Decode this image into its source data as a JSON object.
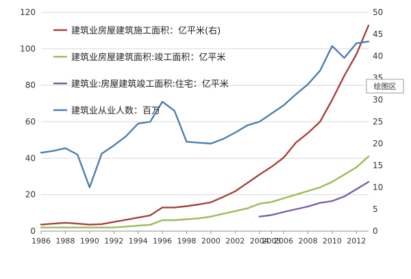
{
  "chart_data": {
    "type": "line",
    "title": "",
    "xlabel": "",
    "ylabel": "",
    "plot_area_tag": "绘图区",
    "grid": "horizontal",
    "legend_position": "top-left inside",
    "xlim": [
      1986,
      2013
    ],
    "x_ticks": [
      1986,
      1988,
      1990,
      1992,
      1994,
      1996,
      1998,
      2000,
      2002,
      2004,
      2005,
      2006,
      2008,
      2010,
      2012
    ],
    "y_left": {
      "ylim": [
        0,
        120
      ],
      "ticks": [
        0,
        20,
        40,
        60,
        80,
        100,
        120
      ]
    },
    "y_right": {
      "ylim": [
        0,
        50
      ],
      "ticks": [
        0,
        5,
        10,
        15,
        20,
        25,
        30,
        35,
        40,
        45,
        50
      ]
    },
    "series": [
      {
        "name": "建筑业房屋建筑施工面积：亿平米(右)",
        "axis": "right",
        "color": "#a8403c",
        "x": [
          1986,
          1987,
          1988,
          1989,
          1990,
          1991,
          1992,
          1993,
          1994,
          1995,
          1996,
          1997,
          1998,
          1999,
          2000,
          2001,
          2002,
          2003,
          2004,
          2005,
          2006,
          2007,
          2008,
          2009,
          2010,
          2011,
          2012,
          2013
        ],
        "values": [
          1.5,
          1.7,
          1.9,
          1.7,
          1.5,
          1.6,
          2.1,
          2.6,
          3.1,
          3.6,
          5.4,
          5.4,
          5.7,
          6.1,
          6.6,
          7.8,
          9.1,
          11.0,
          12.9,
          14.7,
          16.8,
          20.2,
          22.4,
          25.0,
          30.0,
          35.5,
          40.4,
          47.0
        ]
      },
      {
        "name": "建筑业房屋建筑面积:竣工面积：亿平米",
        "axis": "left",
        "color": "#9bbb59",
        "x": [
          1986,
          1987,
          1988,
          1989,
          1990,
          1991,
          1992,
          1993,
          1994,
          1995,
          1996,
          1997,
          1998,
          1999,
          2000,
          2001,
          2002,
          2003,
          2004,
          2005,
          2006,
          2007,
          2008,
          2009,
          2010,
          2011,
          2012,
          2013
        ],
        "values": [
          2,
          2,
          2,
          2,
          2,
          2,
          2,
          2.5,
          3,
          3.5,
          6,
          6,
          6.5,
          7,
          8,
          9.5,
          11,
          12.5,
          15,
          16,
          18,
          20,
          22,
          24,
          27,
          31,
          35,
          41
        ]
      },
      {
        "name": "建筑业:房屋建筑竣工面积:住宅：亿平米",
        "axis": "left",
        "color": "#7b5ea7",
        "x": [
          2004,
          2005,
          2006,
          2007,
          2008,
          2009,
          2010,
          2011,
          2012,
          2013
        ],
        "values": [
          8,
          8.8,
          10.5,
          12,
          13.5,
          15.5,
          16.5,
          19,
          23,
          27
        ]
      },
      {
        "name": "建筑业从业人数：百万",
        "axis": "left",
        "color": "#4a7eb0",
        "x": [
          1986,
          1987,
          1988,
          1989,
          1990,
          1991,
          1992,
          1993,
          1994,
          1995,
          1996,
          1997,
          1998,
          1999,
          2000,
          2001,
          2002,
          2003,
          2004,
          2005,
          2006,
          2007,
          2008,
          2009,
          2010,
          2011,
          2012,
          2013
        ],
        "values": [
          43,
          44,
          45.5,
          42,
          24,
          42.5,
          47,
          52,
          59,
          60,
          71,
          66,
          49,
          48.5,
          48,
          50.5,
          54,
          58,
          60,
          64.5,
          69,
          75,
          80.5,
          88,
          101.5,
          95,
          103,
          104
        ]
      }
    ]
  }
}
